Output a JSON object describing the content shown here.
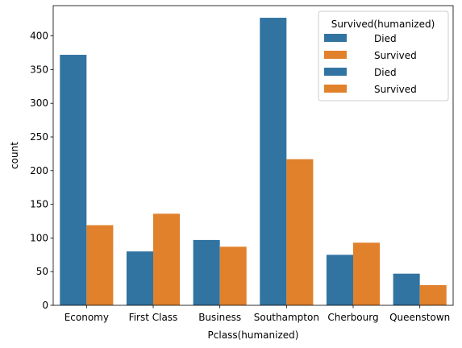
{
  "chart_data": {
    "type": "bar",
    "title": "",
    "xlabel": "Pclass(humanized)",
    "ylabel": "count",
    "categories": [
      "Economy",
      "First Class",
      "Business",
      "Southampton",
      "Cherbourg",
      "Queenstown"
    ],
    "series": [
      {
        "name": "Died",
        "color": "#3274a1",
        "values": [
          372,
          80,
          97,
          427,
          75,
          47
        ]
      },
      {
        "name": "Survived",
        "color": "#e1812c",
        "values": [
          119,
          136,
          87,
          217,
          93,
          30
        ]
      }
    ],
    "ylim": [
      0,
      445
    ],
    "yticks": [
      0,
      50,
      100,
      150,
      200,
      250,
      300,
      350,
      400
    ],
    "grid": false,
    "legend": {
      "title": "Survived(humanized)",
      "placement": "top-right",
      "entries": [
        {
          "label": "Died",
          "color": "#3274a1"
        },
        {
          "label": "Survived",
          "color": "#e1812c"
        },
        {
          "label": "Died",
          "color": "#3274a1"
        },
        {
          "label": "Survived",
          "color": "#e1812c"
        }
      ]
    }
  }
}
